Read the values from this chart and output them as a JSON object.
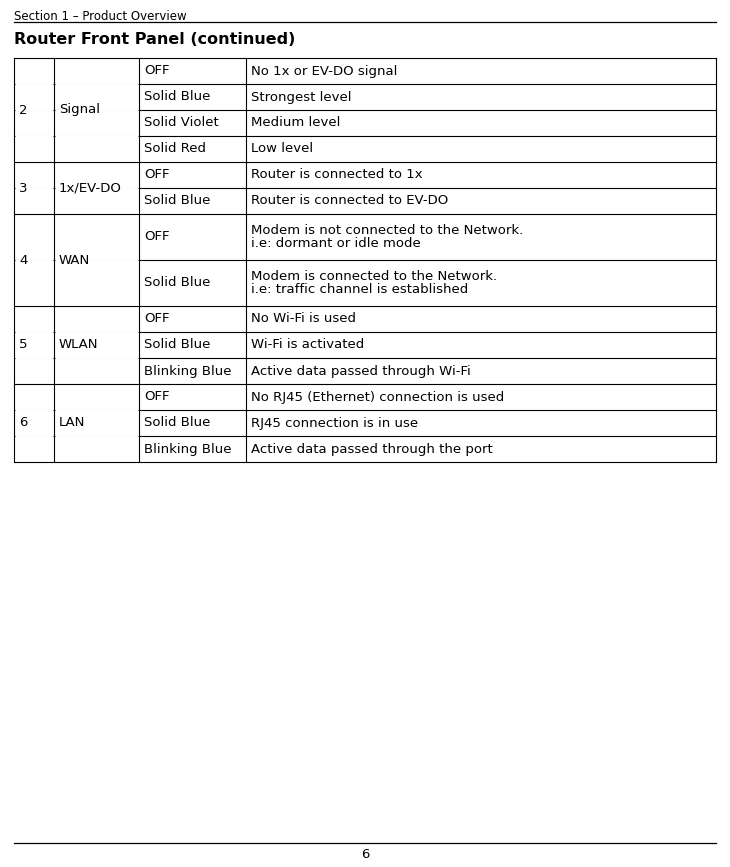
{
  "page_header": "Section 1 – Product Overview",
  "section_title": "Router Front Panel (continued)",
  "footer_text": "6",
  "bg_color": "#ffffff",
  "text_color": "#000000",
  "table_border_color": "#000000",
  "header_font_size": 8.5,
  "title_font_size": 11.5,
  "cell_font_size": 9.5,
  "table_rows": [
    {
      "num": "2",
      "name": "Signal",
      "status": "OFF",
      "description": "No 1x or EV-DO signal",
      "desc2": ""
    },
    {
      "num": "",
      "name": "",
      "status": "Solid Blue",
      "description": "Strongest level",
      "desc2": ""
    },
    {
      "num": "",
      "name": "",
      "status": "Solid Violet",
      "description": "Medium level",
      "desc2": ""
    },
    {
      "num": "",
      "name": "",
      "status": "Solid Red",
      "description": "Low level",
      "desc2": ""
    },
    {
      "num": "3",
      "name": "1x/EV-DO",
      "status": "OFF",
      "description": "Router is connected to 1x",
      "desc2": ""
    },
    {
      "num": "",
      "name": "",
      "status": "Solid Blue",
      "description": "Router is connected to EV-DO",
      "desc2": ""
    },
    {
      "num": "4",
      "name": "WAN",
      "status": "OFF",
      "description": "Modem is not connected to the Network.",
      "desc2": "i.e: dormant or idle mode"
    },
    {
      "num": "",
      "name": "",
      "status": "Solid Blue",
      "description": "Modem is connected to the Network.",
      "desc2": "i.e: traffic channel is established"
    },
    {
      "num": "5",
      "name": "WLAN",
      "status": "OFF",
      "description": "No Wi-Fi is used",
      "desc2": ""
    },
    {
      "num": "",
      "name": "",
      "status": "Solid Blue",
      "description": "Wi-Fi is activated",
      "desc2": ""
    },
    {
      "num": "",
      "name": "",
      "status": "Blinking Blue",
      "description": "Active data passed through Wi-Fi",
      "desc2": ""
    },
    {
      "num": "6",
      "name": "LAN",
      "status": "OFF",
      "description": "No RJ45 (Ethernet) connection is used",
      "desc2": ""
    },
    {
      "num": "",
      "name": "",
      "status": "Solid Blue",
      "description": "RJ45 connection is in use",
      "desc2": ""
    },
    {
      "num": "",
      "name": "",
      "status": "Blinking Blue",
      "description": "Active data passed through the port",
      "desc2": ""
    }
  ],
  "row_groups": [
    {
      "start": 0,
      "end": 3,
      "num": "2",
      "name": "Signal"
    },
    {
      "start": 4,
      "end": 5,
      "num": "3",
      "name": "1x/EV-DO"
    },
    {
      "start": 6,
      "end": 7,
      "num": "4",
      "name": "WAN"
    },
    {
      "start": 8,
      "end": 10,
      "num": "5",
      "name": "WLAN"
    },
    {
      "start": 11,
      "end": 13,
      "num": "6",
      "name": "LAN"
    }
  ]
}
